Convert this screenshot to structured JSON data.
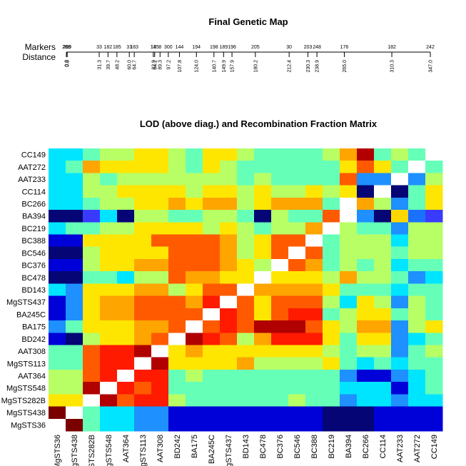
{
  "chart_data": [
    {
      "type": "map",
      "title": "Final Genetic Map",
      "row_labels": [
        "Markers",
        "Distance"
      ],
      "markers": [
        "268",
        "269",
        "33",
        "182",
        "185",
        "31",
        "183",
        "13",
        "145",
        "8",
        "300",
        "144",
        "194",
        "198",
        "189",
        "196",
        "205",
        "30",
        "203",
        "248",
        "176",
        "182",
        "242"
      ],
      "distances": [
        "0.0",
        "0.8",
        "31.3",
        "39.7",
        "48.2",
        "60.0",
        "64.7",
        "82.9",
        "84.2",
        "89.3",
        "97.2",
        "107.8",
        "124.0",
        "140.7",
        "149.9",
        "157.9",
        "180.2",
        "212.4",
        "230.3",
        "238.9",
        "265.0",
        "310.3",
        "347.0"
      ]
    },
    {
      "type": "heatmap",
      "title": "LOD (above diag.) and Recombination Fraction Matrix",
      "x_labels": [
        "MgSTS36",
        "MgSTS438",
        "MgSTS282B",
        "MgSTS548",
        "AAT364",
        "MgSTS113",
        "AAT308",
        "BD242",
        "BA175",
        "BA245C",
        "MgSTS437",
        "BD143",
        "BC478",
        "BC376",
        "BC546",
        "BC388",
        "BC219",
        "BA394",
        "BC266",
        "CC114",
        "AAT233",
        "AAT272",
        "CC149"
      ],
      "y_labels": [
        "CC149",
        "AAT272",
        "AAT233",
        "CC114",
        "BC266",
        "BA394",
        "BC219",
        "BC388",
        "BC546",
        "BC376",
        "BC478",
        "BD143",
        "MgSTS437",
        "BA245C",
        "BA175",
        "BD242",
        "AAT308",
        "MgSTS113",
        "AAT364",
        "MgSTS548",
        "MgSTS282B",
        "MgSTS438",
        "MgSTS36"
      ],
      "cells": [
        "DDEFFGGFEGGFEEEEFHKEFEW",
        "DEHGGGGFEGFEEEEEEGIGEWE",
        "DDFEFFFFFFFEFEEEEICCWCF",
        "DDFFGGGGFGGFGFFGFGAWAEG",
        "DDEFFGGHGHHFGHHHEWHFCEG",
        "AAPDAFFEEFFEAFEEIWCAQOP",
        "DEEFFGGGGFGFEFFHWFEECFF",
        "BBGGGGIIIIHFGIIWEFFFDFF",
        "AAFGGGGIIIHFGIWIEFFFEFF",
        "BBFGGHHIIIHGFWIHEFEFDEE",
        "AAEEDFFIHHGGWGGGFHFFECD",
        "DCGGGHHFGIIWHHHHGEEEDEE",
        "BCGHHIIIHJWIGIIIFDGFCFE",
        "BCGHHIIIIWJIGIJJEFGGEFE",
        "CEGGGHHIWIJIKKKIGFHHCFG",
        "BAFGGHIWKJIFHJJJGEGGCDE",
        "EEIJJKWGHGGGGGGGFEFFCEF",
        "EEIJJWKGGGGHFFFFGEDEDEE",
        "FFIJWJJEFEEEEEEEECBBCDE",
        "FFKWJIJEEEEEEEEEEDDDBDE",
        "GGWKIJJFEEEEEEFEECDDCDD",
        "LWEDDCCBBBBBBBBBAAABBBB",
        "WLEDDCCBBBBBBBBBAAABBBB"
      ],
      "palette": {
        "A": "#050575",
        "B": "#0000d8",
        "C": "#1e90ff",
        "D": "#00e5ff",
        "E": "#66ffb8",
        "F": "#b8ff66",
        "G": "#ffe600",
        "H": "#ffa500",
        "I": "#ff5a00",
        "J": "#ff1a00",
        "K": "#b00000",
        "L": "#7a0000",
        "M": "#3c9cff",
        "N": "#1414e0",
        "O": "#1a70ff",
        "P": "#3a3aff",
        "Q": "#ffd700",
        "W": "#ffffff"
      },
      "color_scale": "blue (low) to red (high)",
      "diagonal": "white"
    }
  ]
}
